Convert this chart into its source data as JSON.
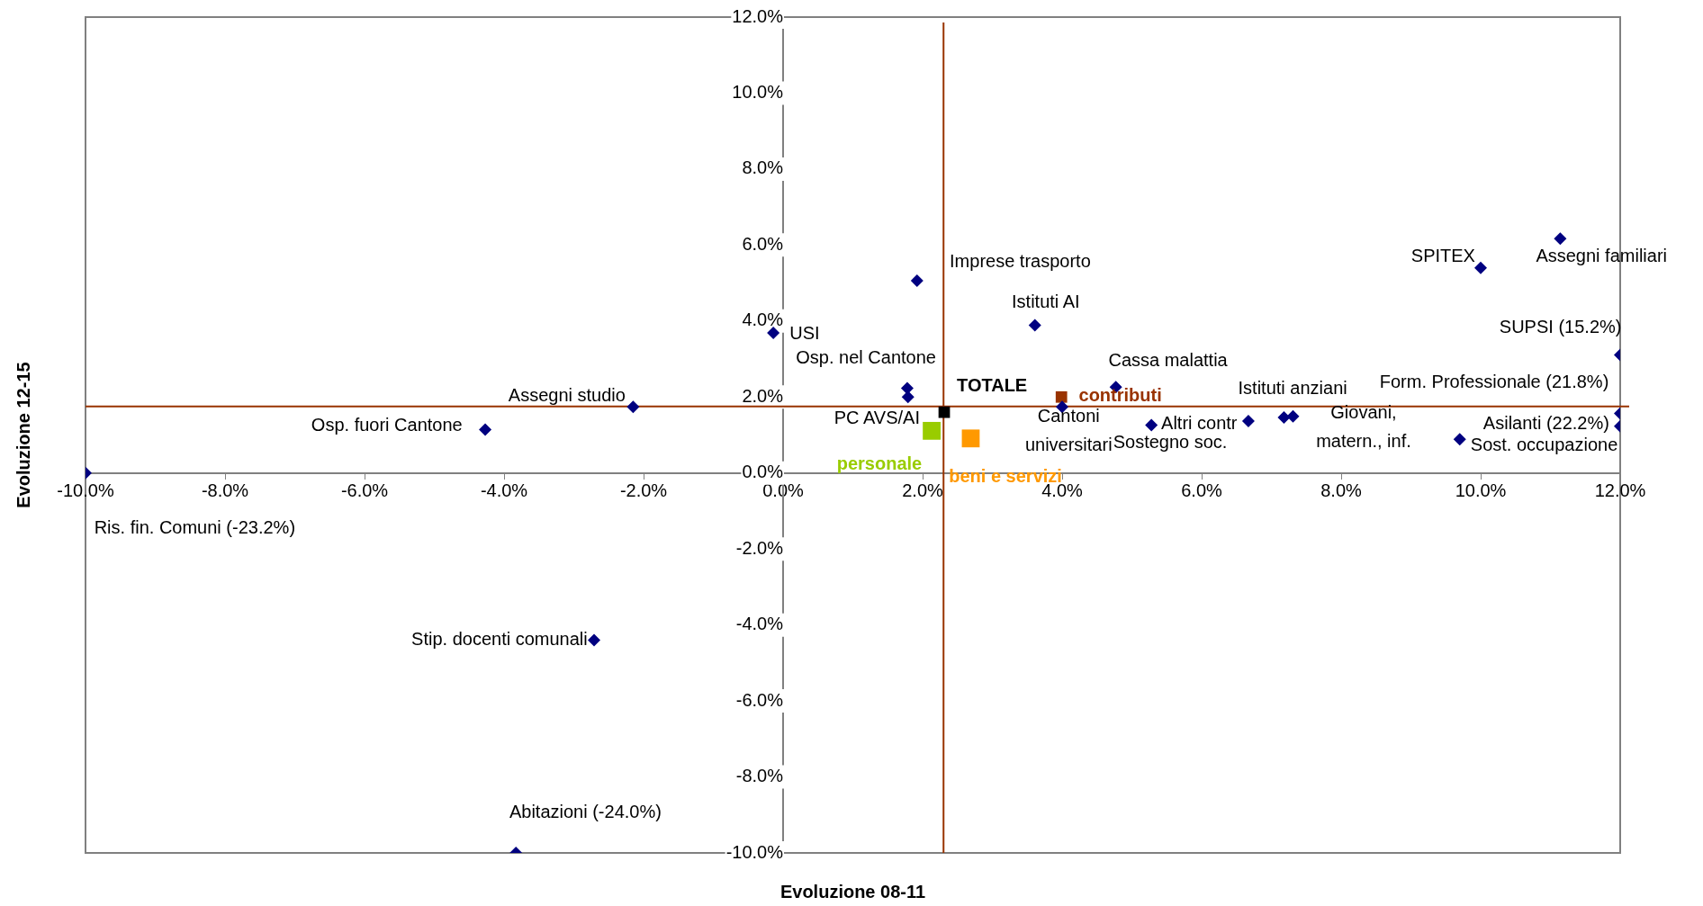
{
  "chart_data": {
    "type": "scatter",
    "xlabel": "Evoluzione 08-11",
    "ylabel": "Evoluzione 12-15",
    "legend": false,
    "grid": false,
    "xlim": [
      -10,
      12
    ],
    "ylim": [
      -10,
      12
    ],
    "xticks": [
      {
        "value": -10,
        "label": "-10.0%"
      },
      {
        "value": -8,
        "label": "-8.0%"
      },
      {
        "value": -6,
        "label": "-6.0%"
      },
      {
        "value": -4,
        "label": "-4.0%"
      },
      {
        "value": -2,
        "label": "-2.0%"
      },
      {
        "value": 0,
        "label": "0.0%"
      },
      {
        "value": 2,
        "label": "2.0%"
      },
      {
        "value": 4,
        "label": "4.0%"
      },
      {
        "value": 6,
        "label": "6.0%"
      },
      {
        "value": 8,
        "label": "8.0%"
      },
      {
        "value": 10,
        "label": "10.0%"
      },
      {
        "value": 12,
        "label": "12.0%"
      }
    ],
    "yticks": [
      {
        "value": -10,
        "label": "-10.0%"
      },
      {
        "value": -8,
        "label": "-8.0%"
      },
      {
        "value": -6,
        "label": "-6.0%"
      },
      {
        "value": -4,
        "label": "-4.0%"
      },
      {
        "value": -2,
        "label": "-2.0%"
      },
      {
        "value": 0,
        "label": "0.0%"
      },
      {
        "value": 2,
        "label": "2.0%"
      },
      {
        "value": 4,
        "label": "4.0%"
      },
      {
        "value": 6,
        "label": "6.0%"
      },
      {
        "value": 8,
        "label": "8.0%"
      },
      {
        "value": 10,
        "label": "10.0%"
      },
      {
        "value": 12,
        "label": "12.0%"
      }
    ],
    "ref_lines": [
      {
        "axis": "x",
        "value": 2.3,
        "color": "#993300"
      },
      {
        "axis": "y",
        "value": 1.75,
        "color": "#993300"
      }
    ],
    "series": [
      {
        "name": "Ris. fin. Comuni (-23.2%)",
        "color": "#000080",
        "marker": "diamond",
        "x": [
          -10
        ],
        "values": [
          0
        ]
      },
      {
        "name": "Abitazioni (-24.0%)",
        "color": "#000080",
        "marker": "diamond",
        "x": [
          -3.83
        ],
        "values": [
          -10
        ]
      },
      {
        "name": "Stip. docenti comunali",
        "color": "#000080",
        "marker": "diamond",
        "x": [
          -2.71
        ],
        "values": [
          -4.4
        ]
      },
      {
        "name": "Osp. fuori Cantone",
        "color": "#000080",
        "marker": "diamond",
        "x": [
          -4.27
        ],
        "values": [
          1.14
        ]
      },
      {
        "name": "Assegni studio",
        "color": "#000080",
        "marker": "diamond",
        "x": [
          -2.15
        ],
        "values": [
          1.74
        ]
      },
      {
        "name": "USI",
        "color": "#000080",
        "marker": "diamond",
        "x": [
          -0.14
        ],
        "values": [
          3.69
        ]
      },
      {
        "name": "Imprese trasporto",
        "color": "#000080",
        "marker": "diamond",
        "x": [
          1.92
        ],
        "values": [
          5.06
        ]
      },
      {
        "name": "Osp. nel Cantone",
        "color": "#000080",
        "marker": "diamond",
        "x": [
          1.78
        ],
        "values": [
          2.23
        ]
      },
      {
        "name": "PC AVS/AI",
        "color": "#000080",
        "marker": "diamond",
        "x": [
          1.79
        ],
        "values": [
          2.0
        ]
      },
      {
        "name": "Istituti AI",
        "color": "#000080",
        "marker": "diamond",
        "x": [
          3.61
        ],
        "values": [
          3.89
        ]
      },
      {
        "name": "Cantoni universitari",
        "color": "#000080",
        "marker": "diamond",
        "x": [
          4.0
        ],
        "values": [
          1.74
        ]
      },
      {
        "name": "Cassa malattia",
        "color": "#000080",
        "marker": "diamond",
        "x": [
          4.77
        ],
        "values": [
          2.26
        ]
      },
      {
        "name": "Altri contr",
        "color": "#000080",
        "marker": "diamond",
        "x": [
          5.28
        ],
        "values": [
          1.26
        ]
      },
      {
        "name": "Sostegno soc.",
        "color": "#000080",
        "marker": "diamond",
        "x": [
          6.67
        ],
        "values": [
          1.37
        ]
      },
      {
        "name": "Istituti anziani",
        "color": "#000080",
        "marker": "diamond",
        "x": [
          7.18
        ],
        "values": [
          1.46
        ]
      },
      {
        "name": "Giovani, matern., inf.",
        "color": "#000080",
        "marker": "diamond",
        "x": [
          7.31
        ],
        "values": [
          1.49
        ]
      },
      {
        "name": "Sost. occupazione",
        "color": "#000080",
        "marker": "diamond",
        "x": [
          9.7
        ],
        "values": [
          0.89
        ]
      },
      {
        "name": "SPITEX",
        "color": "#000080",
        "marker": "diamond",
        "x": [
          10.0
        ],
        "values": [
          5.4
        ]
      },
      {
        "name": "Assegni familiari",
        "color": "#000080",
        "marker": "diamond",
        "x": [
          11.14
        ],
        "values": [
          6.17
        ]
      },
      {
        "name": "SUPSI (15.2%)",
        "color": "#000080",
        "marker": "diamond",
        "x": [
          12
        ],
        "values": [
          3.11
        ]
      },
      {
        "name": "Form. Professionale (21.8%)",
        "color": "#000080",
        "marker": "diamond",
        "x": [
          12
        ],
        "values": [
          1.57
        ]
      },
      {
        "name": "Asilanti (22.2%)",
        "color": "#000080",
        "marker": "diamond",
        "x": [
          12
        ],
        "values": [
          1.23
        ]
      },
      {
        "name": "TOTALE",
        "color": "#000000",
        "marker": "square",
        "x": [
          2.31
        ],
        "values": [
          1.6
        ]
      },
      {
        "name": "contributi",
        "color": "#993300",
        "marker": "square",
        "x": [
          3.99
        ],
        "values": [
          2.0
        ]
      },
      {
        "name": "personale",
        "color": "#99cc00",
        "marker": "square",
        "x": [
          2.13
        ],
        "values": [
          1.11
        ]
      },
      {
        "name": "beni e servizi",
        "color": "#ff9900",
        "marker": "square",
        "x": [
          2.69
        ],
        "values": [
          0.91
        ]
      }
    ]
  }
}
